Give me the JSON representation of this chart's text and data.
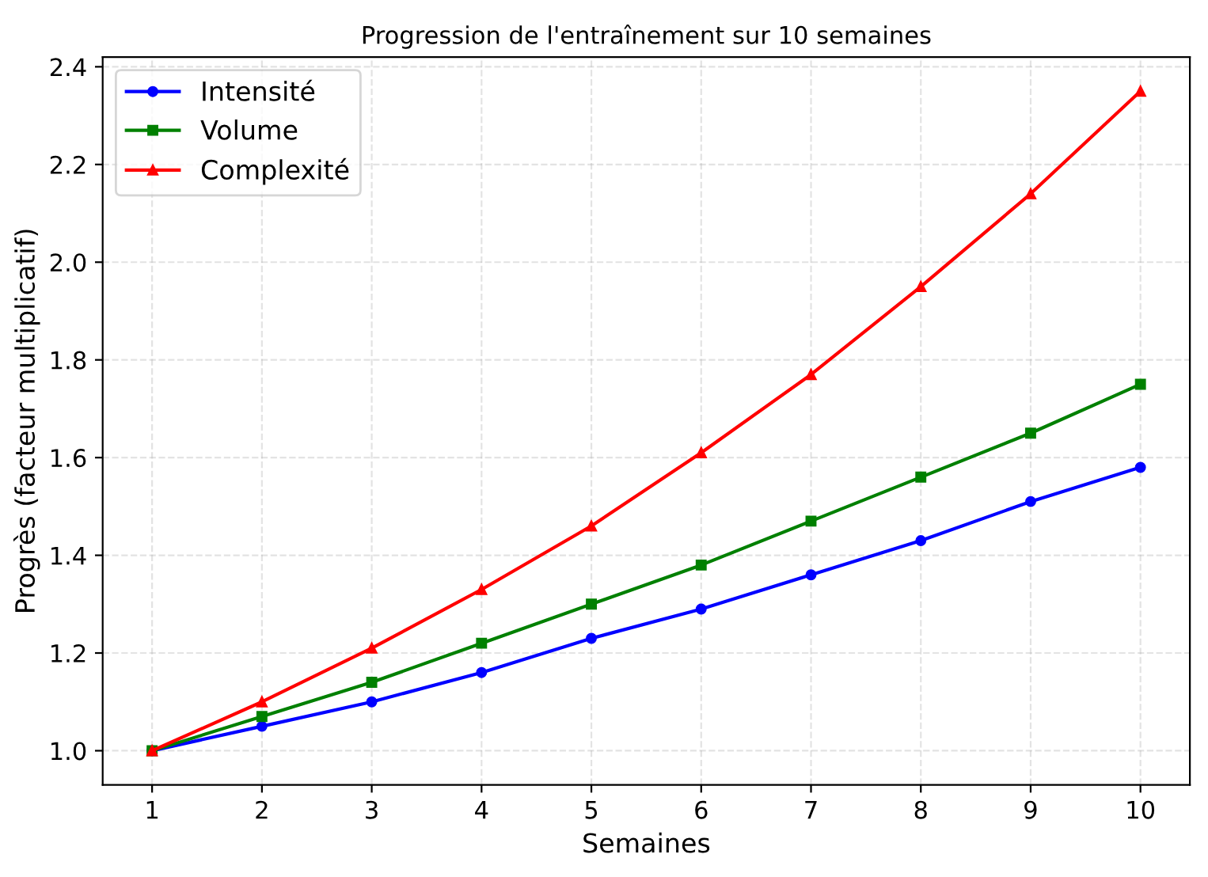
{
  "chart_data": {
    "type": "line",
    "title": "Progression de l'entraînement sur 10 semaines",
    "xlabel": "Semaines",
    "ylabel": "Progrès (facteur multiplicatif)",
    "x": [
      1,
      2,
      3,
      4,
      5,
      6,
      7,
      8,
      9,
      10
    ],
    "series": [
      {
        "name": "Intensité",
        "color": "#0000ff",
        "marker": "circle",
        "values": [
          1.0,
          1.05,
          1.1,
          1.16,
          1.23,
          1.29,
          1.36,
          1.43,
          1.51,
          1.58
        ]
      },
      {
        "name": "Volume",
        "color": "#008000",
        "marker": "square",
        "values": [
          1.0,
          1.07,
          1.14,
          1.22,
          1.3,
          1.38,
          1.47,
          1.56,
          1.65,
          1.75
        ]
      },
      {
        "name": "Complexité",
        "color": "#ff0000",
        "marker": "triangle",
        "values": [
          1.0,
          1.1,
          1.21,
          1.33,
          1.46,
          1.61,
          1.77,
          1.95,
          2.14,
          2.35
        ]
      }
    ],
    "xlim": [
      0.55,
      10.45
    ],
    "xticks": [
      1,
      2,
      3,
      4,
      5,
      6,
      7,
      8,
      9,
      10
    ],
    "ylim": [
      0.93,
      2.42
    ],
    "yticks": [
      {
        "value": 1.0,
        "label": "1.0"
      },
      {
        "value": 1.2,
        "label": "1.2"
      },
      {
        "value": 1.4,
        "label": "1.4"
      },
      {
        "value": 1.6,
        "label": "1.6"
      },
      {
        "value": 1.8,
        "label": "1.8"
      },
      {
        "value": 2.0,
        "label": "2.0"
      },
      {
        "value": 2.2,
        "label": "2.2"
      },
      {
        "value": 2.4,
        "label": "2.4"
      }
    ],
    "grid": true,
    "legend": "top left",
    "line_style": "solid"
  }
}
